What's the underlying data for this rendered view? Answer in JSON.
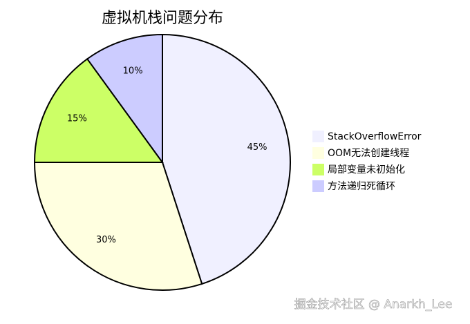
{
  "chart_data": {
    "type": "pie",
    "title": "虚拟机栈问题分布",
    "categories": [
      "StackOverflowError",
      "OOM无法创建线程",
      "局部变量未初始化",
      "方法递归死循环"
    ],
    "values": [
      45,
      30,
      15,
      10
    ],
    "value_labels": [
      "45%",
      "30%",
      "15%",
      "10%"
    ],
    "colors": [
      "#f0f0ff",
      "#ffffe0",
      "#ccff66",
      "#ccccff"
    ],
    "legend": "right"
  },
  "watermark": "掘金技术社区 @ Anarkh_Lee"
}
